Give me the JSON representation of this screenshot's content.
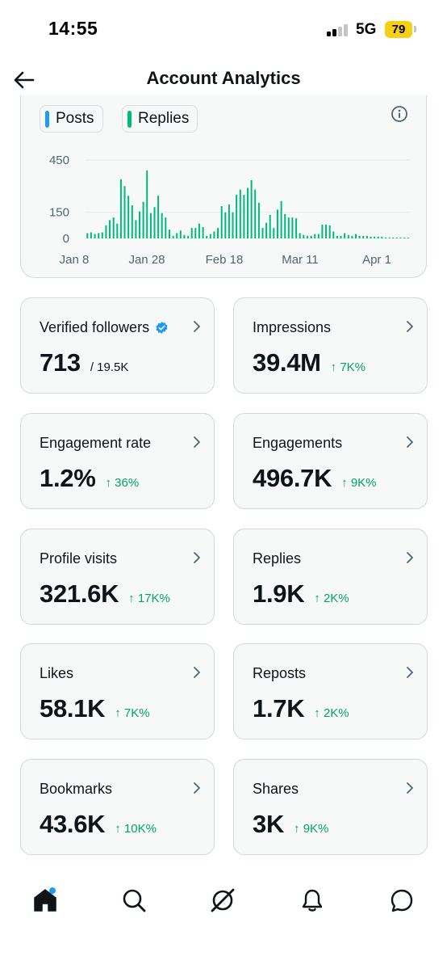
{
  "status_bar": {
    "time": "14:55",
    "network": "5G",
    "battery": "79"
  },
  "header": {
    "title": "Account Analytics",
    "back_icon": "arrow-left-icon"
  },
  "colors": {
    "accent": "#1d9bf0",
    "posts": "#1d9bf0",
    "replies": "#00ba7c",
    "positive": "#00a36c"
  },
  "legend": {
    "posts_label": "Posts",
    "replies_label": "Replies"
  },
  "chart_data": {
    "type": "bar",
    "series": [
      {
        "name": "Replies",
        "values": [
          30,
          35,
          25,
          30,
          35,
          75,
          105,
          120,
          85,
          340,
          300,
          245,
          190,
          105,
          155,
          210,
          390,
          145,
          180,
          245,
          145,
          120,
          50,
          15,
          30,
          45,
          20,
          15,
          60,
          60,
          85,
          65,
          15,
          25,
          40,
          60,
          185,
          150,
          195,
          150,
          250,
          280,
          250,
          290,
          335,
          280,
          205,
          60,
          90,
          135,
          60,
          165,
          215,
          140,
          120,
          120,
          115,
          30,
          20,
          15,
          15,
          25,
          25,
          80,
          80,
          75,
          40,
          15,
          15,
          30,
          20,
          15,
          25,
          15,
          15,
          15,
          10,
          10,
          10,
          10,
          5,
          5,
          5,
          5,
          5,
          5,
          5
        ]
      }
    ],
    "x_tick_labels": [
      "Jan 8",
      "Jan 28",
      "Feb 18",
      "Mar 11",
      "Apr 1"
    ],
    "y_tick_labels": [
      "450",
      "150",
      "0"
    ],
    "ylim": [
      0,
      450
    ],
    "grid": true
  },
  "stats": [
    {
      "label": "Verified followers",
      "value": "713",
      "sub": "/ 19.5K",
      "verified": true
    },
    {
      "label": "Impressions",
      "value": "39.4M",
      "change": "↑ 7K%"
    },
    {
      "label": "Engagement rate",
      "value": "1.2%",
      "change": "↑ 36%"
    },
    {
      "label": "Engagements",
      "value": "496.7K",
      "change": "↑ 9K%"
    },
    {
      "label": "Profile visits",
      "value": "321.6K",
      "change": "↑ 17K%"
    },
    {
      "label": "Replies",
      "value": "1.9K",
      "change": "↑ 2K%"
    },
    {
      "label": "Likes",
      "value": "58.1K",
      "change": "↑ 7K%"
    },
    {
      "label": "Reposts",
      "value": "1.7K",
      "change": "↑ 2K%"
    },
    {
      "label": "Bookmarks",
      "value": "43.6K",
      "change": "↑ 10K%"
    },
    {
      "label": "Shares",
      "value": "3K",
      "change": "↑ 9K%"
    }
  ],
  "tabs": [
    {
      "icon": "home-icon",
      "active": true,
      "has_notification_dot": true
    },
    {
      "icon": "search-icon"
    },
    {
      "icon": "grok-icon"
    },
    {
      "icon": "bell-icon"
    },
    {
      "icon": "messages-icon"
    }
  ]
}
